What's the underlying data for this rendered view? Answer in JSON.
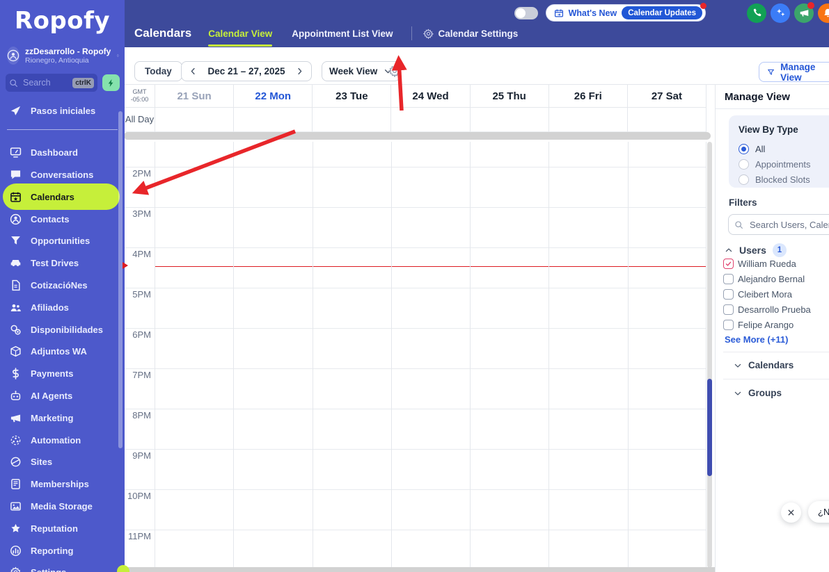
{
  "colors": {
    "accent_green": "#c6ef3a",
    "sidebar_bg": "#4d59cb",
    "topbar_bg": "#3d4a9b",
    "blue": "#2a5bd7",
    "rose": "#e0426e",
    "arrow_red": "#e8262a"
  },
  "sidebar": {
    "logo": "Ropofy",
    "account": {
      "name": "zzDesarrollo - Ropofy",
      "location": "Rionegro, Antioquia"
    },
    "search": {
      "placeholder": "Search",
      "shortcut": "ctrlK"
    },
    "items": [
      {
        "icon": "rocket",
        "label": "Pasos iniciales",
        "active": false,
        "divider_after": true
      },
      {
        "icon": "dashboard",
        "label": "Dashboard",
        "active": false
      },
      {
        "icon": "chat",
        "label": "Conversations",
        "active": false
      },
      {
        "icon": "calendar",
        "label": "Calendars",
        "active": true
      },
      {
        "icon": "contact",
        "label": "Contacts",
        "active": false
      },
      {
        "icon": "funnel",
        "label": "Opportunities",
        "active": false
      },
      {
        "icon": "car",
        "label": "Test Drives",
        "active": false
      },
      {
        "icon": "quote",
        "label": "CotizacióNes",
        "active": false
      },
      {
        "icon": "users",
        "label": "Afiliados",
        "active": false
      },
      {
        "icon": "availability",
        "label": "Disponibilidades",
        "active": false
      },
      {
        "icon": "package",
        "label": "Adjuntos WA",
        "active": false
      },
      {
        "icon": "dollar",
        "label": "Payments",
        "active": false
      },
      {
        "icon": "robot",
        "label": "AI Agents",
        "active": false
      },
      {
        "icon": "megaphone",
        "label": "Marketing",
        "active": false
      },
      {
        "icon": "automation",
        "label": "Automation",
        "active": false
      },
      {
        "icon": "sites",
        "label": "Sites",
        "active": false
      },
      {
        "icon": "memberships",
        "label": "Memberships",
        "active": false
      },
      {
        "icon": "media",
        "label": "Media Storage",
        "active": false
      },
      {
        "icon": "reputation",
        "label": "Reputation",
        "active": false
      },
      {
        "icon": "reporting",
        "label": "Reporting",
        "active": false
      },
      {
        "icon": "gear",
        "label": "Settings",
        "active": false
      }
    ]
  },
  "topbar": {
    "title": "Calendars",
    "tabs": [
      {
        "label": "Calendar View",
        "active": true
      },
      {
        "label": "Appointment List View",
        "active": false
      }
    ],
    "settings_label": "Calendar Settings",
    "whats_new": "What's New",
    "whats_new_badge": "Calendar Updates"
  },
  "toolbar": {
    "today": "Today",
    "date_range": "Dec 21 – 27, 2025",
    "view_selector": "Week View",
    "manage_view": "Manage View"
  },
  "calendar": {
    "timezone": {
      "line1": "GMT",
      "line2": "-05:00"
    },
    "all_day_label": "All Day",
    "days": [
      {
        "label": "21 Sun",
        "state": "past"
      },
      {
        "label": "22 Mon",
        "state": "today"
      },
      {
        "label": "23 Tue",
        "state": "future"
      },
      {
        "label": "24 Wed",
        "state": "future"
      },
      {
        "label": "25 Thu",
        "state": "future"
      },
      {
        "label": "26 Fri",
        "state": "future"
      },
      {
        "label": "27 Sat",
        "state": "future"
      }
    ],
    "hours": [
      "2PM",
      "3PM",
      "4PM",
      "5PM",
      "6PM",
      "7PM",
      "8PM",
      "9PM",
      "10PM",
      "11PM"
    ]
  },
  "panel": {
    "title": "Manage View",
    "view_by_type": {
      "title": "View By Type",
      "options": [
        {
          "label": "All",
          "selected": true
        },
        {
          "label": "Appointments",
          "selected": false
        },
        {
          "label": "Blocked Slots",
          "selected": false
        }
      ]
    },
    "filters_label": "Filters",
    "search_placeholder": "Search Users, Calendars or Groups",
    "users": {
      "label": "Users",
      "count": "1",
      "items": [
        {
          "name": "William Rueda",
          "checked": true
        },
        {
          "name": "Alejandro Bernal",
          "checked": false
        },
        {
          "name": "Cleibert Mora",
          "checked": false
        },
        {
          "name": "Desarrollo Prueba",
          "checked": false
        },
        {
          "name": "Felipe Arango",
          "checked": false
        }
      ],
      "see_more": "See More (+11)"
    },
    "sections": [
      {
        "label": "Calendars"
      },
      {
        "label": "Groups"
      }
    ]
  },
  "floating": {
    "chat_message": "¿Necesitas ayuda?"
  }
}
